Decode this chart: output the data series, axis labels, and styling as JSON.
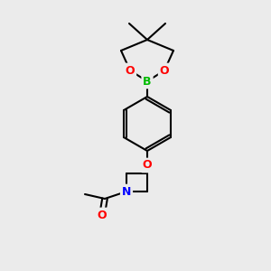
{
  "bg_color": "#ebebeb",
  "bond_color": "#000000",
  "atom_colors": {
    "O": "#ff0000",
    "B": "#00bb00",
    "N": "#0000ff",
    "C": "#000000"
  },
  "figsize": [
    3.0,
    3.0
  ],
  "dpi": 100
}
